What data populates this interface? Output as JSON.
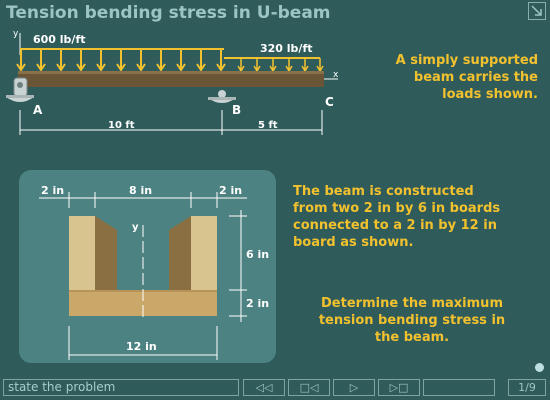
{
  "title": "Tension bending stress in U-beam",
  "beam_diagram": {
    "axis_y": "y",
    "axis_x": "x",
    "load_left": "600 lb/ft",
    "load_right": "320 lb/ft",
    "support_a": "A",
    "support_b": "B",
    "end_c": "C",
    "span_ab": "10 ft",
    "span_bc": "5 ft"
  },
  "problem_text": {
    "p1": [
      "A simply supported",
      "beam carries the",
      "loads shown."
    ],
    "p2": [
      "The beam is constructed",
      "from two 2 in by 6 in boards",
      "connected to a 2 in by 12 in",
      "board as shown."
    ],
    "p3": [
      "Determine the maximum",
      "tension bending stress in",
      "the beam."
    ]
  },
  "cross_section": {
    "dim_left": "2 in",
    "dim_mid": "8 in",
    "dim_right": "2 in",
    "dim_height_web": "6 in",
    "dim_height_flange": "2 in",
    "dim_width": "12 in",
    "axis_y": "y"
  },
  "bottom_bar": {
    "status": "state the problem",
    "btn_first": "◁◁",
    "btn_prev": "□◁",
    "btn_next": "▷",
    "btn_last": "▷□",
    "page": "1/9"
  },
  "colors": {
    "background": "#2f5b5b",
    "accent": "#f2c12e",
    "wood_light": "#d8c48f",
    "wood_dark": "#6a5536"
  }
}
